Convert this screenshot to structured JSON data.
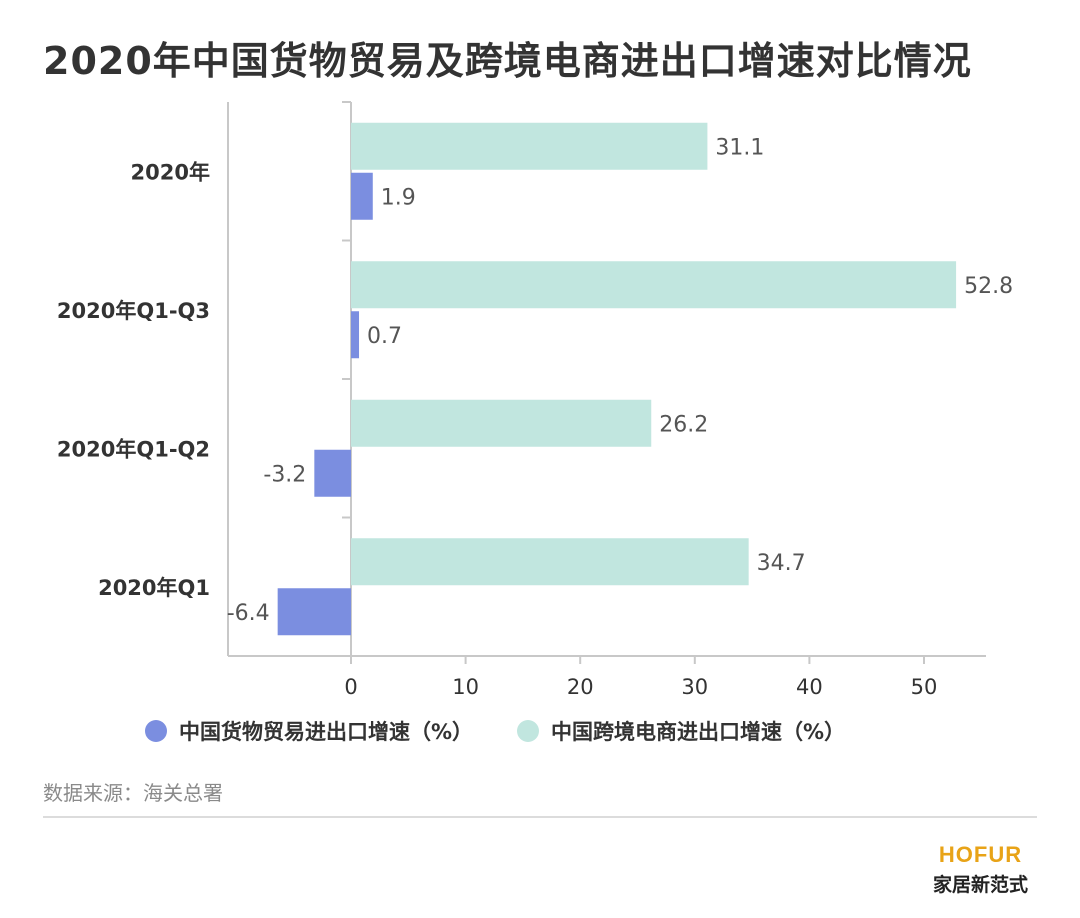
{
  "title": "2020年中国货物贸易及跨境电商进出口增速对比情况",
  "chart_data": {
    "type": "bar",
    "orientation": "horizontal",
    "categories": [
      "2020年",
      "2020年Q1-Q3",
      "2020年Q1-Q2",
      "2020年Q1"
    ],
    "series": [
      {
        "name": "中国跨境电商进出口增速（%）",
        "values": [
          31.1,
          52.8,
          26.2,
          34.7
        ],
        "labels": [
          "31.1",
          "52.8",
          "26.2",
          "34.7"
        ],
        "color": "#c1e6df"
      },
      {
        "name": "中国货物贸易进出口增速（%）",
        "values": [
          1.9,
          0.7,
          -3.2,
          -6.4
        ],
        "labels": [
          "1.9",
          "0.7",
          "-3.2",
          "-6.4"
        ],
        "color": "#7b8ee0"
      }
    ],
    "x_ticks": [
      "0",
      "10",
      "20",
      "30",
      "40",
      "50"
    ],
    "xlim": [
      -6.4,
      55
    ],
    "grid": false,
    "legend_position": "bottom"
  },
  "legend": [
    {
      "label": "中国货物贸易进出口增速（%）",
      "color": "#7b8ee0"
    },
    {
      "label": "中国跨境电商进出口增速（%）",
      "color": "#c1e6df"
    }
  ],
  "source": "数据来源：海关总署",
  "brand": {
    "logo": "HOFUR",
    "logo_color": "#e8a317",
    "subtitle": "家居新范式"
  },
  "colors": {
    "axis": "#c8c8c8",
    "text": "#333333",
    "muted": "#8a8a8a"
  }
}
